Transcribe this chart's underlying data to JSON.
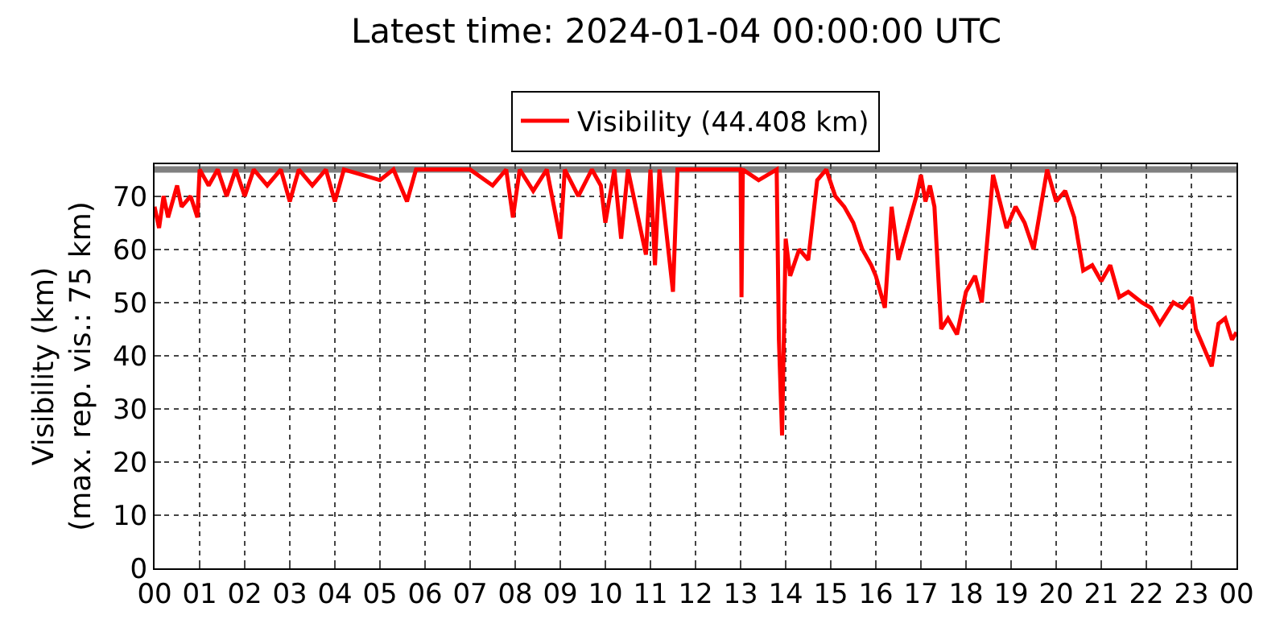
{
  "chart_data": {
    "type": "line",
    "title": "Latest time: 2024-01-04 00:00:00 UTC",
    "ylabel": "Visibility (km)\n(max. rep. vis.: 75 km)",
    "x": [
      0.0,
      0.1,
      0.2,
      0.3,
      0.5,
      0.6,
      0.8,
      0.95,
      1.0,
      1.2,
      1.4,
      1.6,
      1.8,
      2.0,
      2.2,
      2.5,
      2.8,
      3.0,
      3.2,
      3.5,
      3.8,
      4.0,
      4.2,
      4.6,
      5.0,
      5.3,
      5.6,
      5.8,
      6.0,
      7.0,
      7.5,
      7.8,
      7.95,
      8.1,
      8.4,
      8.7,
      9.0,
      9.1,
      9.4,
      9.7,
      9.9,
      10.0,
      10.2,
      10.35,
      10.5,
      10.9,
      11.0,
      11.1,
      11.2,
      11.5,
      11.6,
      13.0,
      13.02,
      13.05,
      13.4,
      13.8,
      13.85,
      13.92,
      14.0,
      14.1,
      14.3,
      14.5,
      14.7,
      14.9,
      15.1,
      15.3,
      15.5,
      15.7,
      15.9,
      16.0,
      16.2,
      16.35,
      16.5,
      16.7,
      16.9,
      17.0,
      17.1,
      17.2,
      17.3,
      17.45,
      17.6,
      17.8,
      18.0,
      18.2,
      18.35,
      18.6,
      18.9,
      19.1,
      19.3,
      19.5,
      19.8,
      20.0,
      20.2,
      20.4,
      20.6,
      20.8,
      21.0,
      21.2,
      21.4,
      21.6,
      21.9,
      22.1,
      22.3,
      22.6,
      22.8,
      23.0,
      23.1,
      23.35,
      23.45,
      23.6,
      23.75,
      23.9,
      24.0
    ],
    "series": [
      {
        "name": "Visibility (44.408 km)",
        "color": "#ff0000",
        "values": [
          68,
          64,
          70,
          66,
          72,
          68,
          70,
          66,
          75,
          72,
          75,
          70,
          75,
          70,
          75,
          72,
          75,
          69,
          75,
          72,
          75,
          69,
          75,
          74,
          73,
          75,
          69,
          75,
          75,
          75,
          72,
          75,
          66,
          75,
          71,
          75,
          62,
          75,
          70,
          75,
          72,
          65,
          75,
          62,
          75,
          59,
          75,
          57,
          75,
          52,
          75,
          75,
          51,
          75,
          73,
          75,
          43,
          25,
          62,
          55,
          60,
          58,
          73,
          75,
          70,
          68,
          65,
          60,
          57,
          55,
          49,
          68,
          58,
          64,
          70,
          74,
          69,
          72,
          68,
          45,
          47,
          44,
          52,
          55,
          50,
          74,
          64,
          68,
          65,
          60,
          75,
          69,
          71,
          66,
          56,
          57,
          54,
          57,
          51,
          52,
          50,
          49,
          46,
          50,
          49,
          51,
          45,
          40,
          38,
          46,
          47,
          43,
          44.4
        ]
      }
    ],
    "xlim": [
      0,
      24
    ],
    "ylim": [
      0,
      76
    ],
    "xticks": [
      {
        "value": 0,
        "label": "00"
      },
      {
        "value": 1,
        "label": "01"
      },
      {
        "value": 2,
        "label": "02"
      },
      {
        "value": 3,
        "label": "03"
      },
      {
        "value": 4,
        "label": "04"
      },
      {
        "value": 5,
        "label": "05"
      },
      {
        "value": 6,
        "label": "06"
      },
      {
        "value": 7,
        "label": "07"
      },
      {
        "value": 8,
        "label": "08"
      },
      {
        "value": 9,
        "label": "09"
      },
      {
        "value": 10,
        "label": "10"
      },
      {
        "value": 11,
        "label": "11"
      },
      {
        "value": 12,
        "label": "12"
      },
      {
        "value": 13,
        "label": "13"
      },
      {
        "value": 14,
        "label": "14"
      },
      {
        "value": 15,
        "label": "15"
      },
      {
        "value": 16,
        "label": "16"
      },
      {
        "value": 17,
        "label": "17"
      },
      {
        "value": 18,
        "label": "18"
      },
      {
        "value": 19,
        "label": "19"
      },
      {
        "value": 20,
        "label": "20"
      },
      {
        "value": 21,
        "label": "21"
      },
      {
        "value": 22,
        "label": "22"
      },
      {
        "value": 23,
        "label": "23"
      },
      {
        "value": 24,
        "label": "00"
      }
    ],
    "yticks": [
      0,
      10,
      20,
      30,
      40,
      50,
      60,
      70
    ],
    "ref_lines": [
      {
        "axis": "y",
        "value": 75,
        "color": "#808080"
      }
    ],
    "grid": true,
    "legend": "top",
    "line_style": "solid",
    "marker": "none"
  }
}
